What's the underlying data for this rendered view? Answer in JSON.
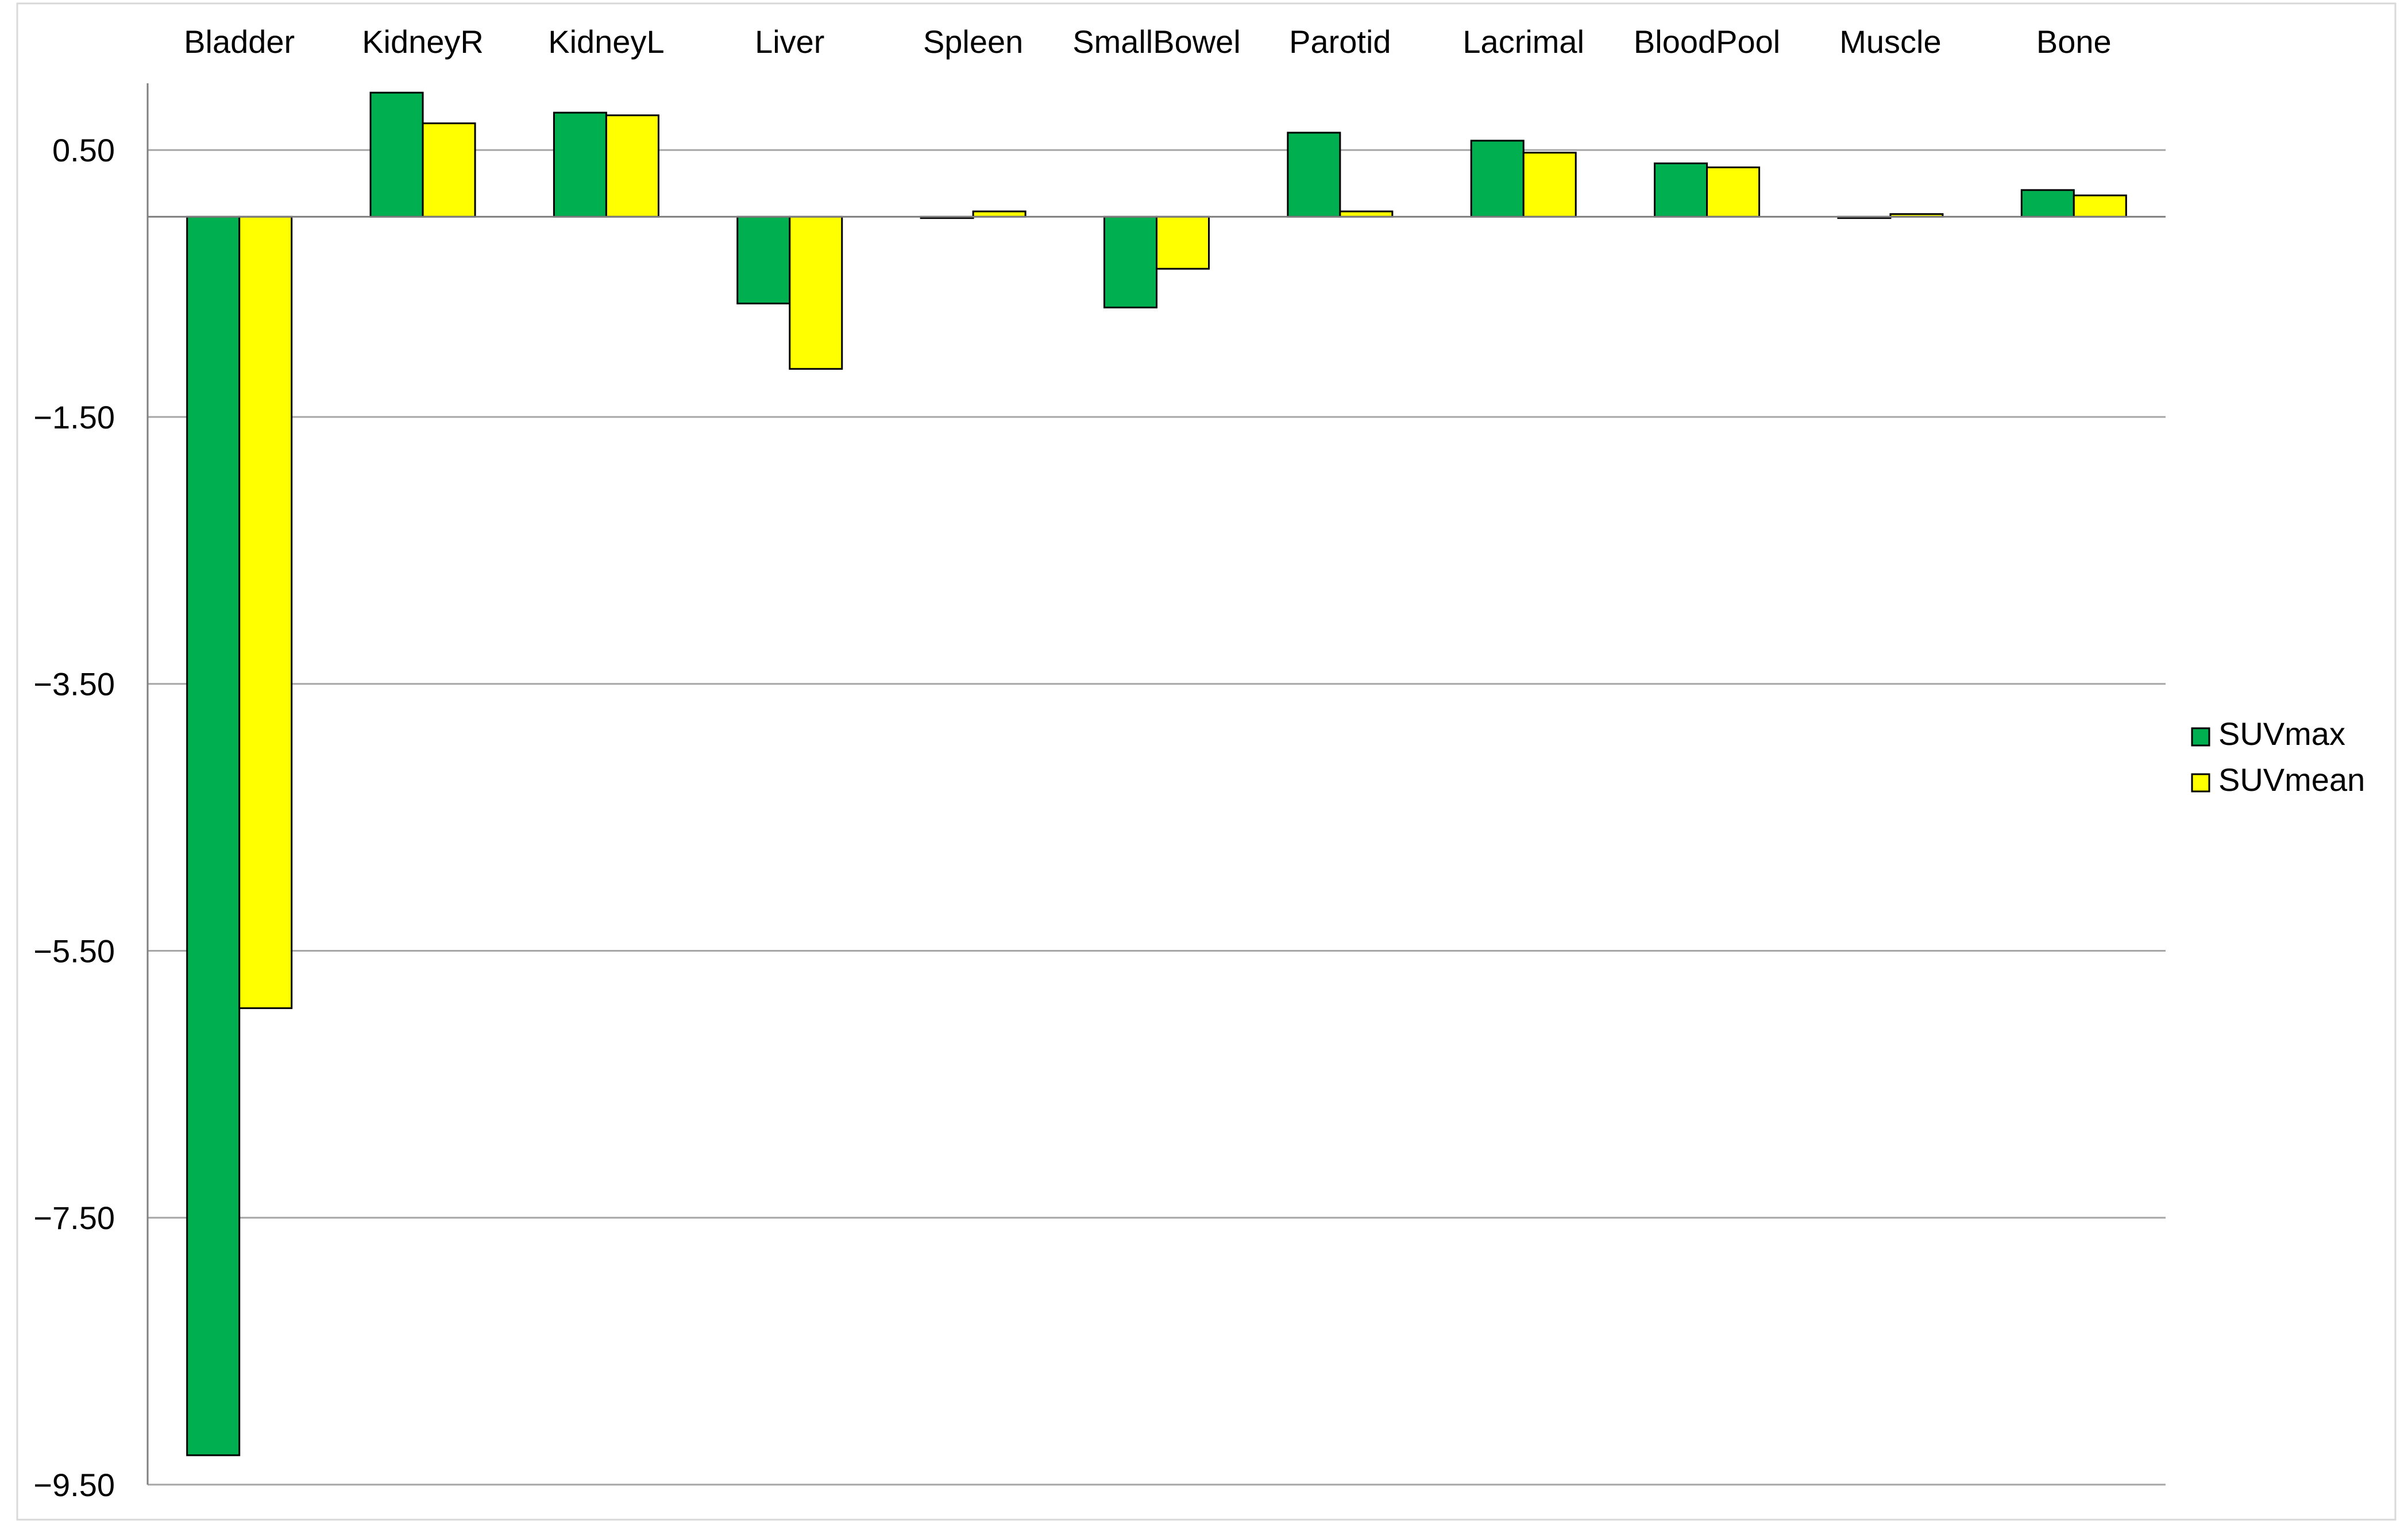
{
  "chart_data": {
    "type": "bar",
    "title": "",
    "xlabel": "",
    "ylabel": "",
    "categories": [
      "Bladder",
      "KidneyR",
      "KidneyL",
      "Liver",
      "Spleen",
      "SmallBowel",
      "Parotid",
      "Lacrimal",
      "BloodPool",
      "Muscle",
      "Bone"
    ],
    "series": [
      {
        "name": "SUVmax",
        "color": "#00b050",
        "values": [
          -9.28,
          0.93,
          0.78,
          -0.65,
          -0.01,
          -0.68,
          0.63,
          0.57,
          0.4,
          -0.01,
          0.2
        ]
      },
      {
        "name": "SUVmean",
        "color": "#ffff00",
        "values": [
          -5.93,
          0.7,
          0.76,
          -1.14,
          0.04,
          -0.39,
          0.04,
          0.48,
          0.37,
          0.02,
          0.16
        ]
      }
    ],
    "ylim": [
      -9.5,
      1.0
    ],
    "yticks": [
      0.5,
      -1.5,
      -3.5,
      -5.5,
      -7.5,
      -9.5
    ],
    "ytick_labels": [
      "0.50",
      "−1.50",
      "−3.50",
      "−5.50",
      "−7.50",
      "−9.50"
    ],
    "xaxis_position": "top",
    "grid": true,
    "legend_position": "right"
  }
}
